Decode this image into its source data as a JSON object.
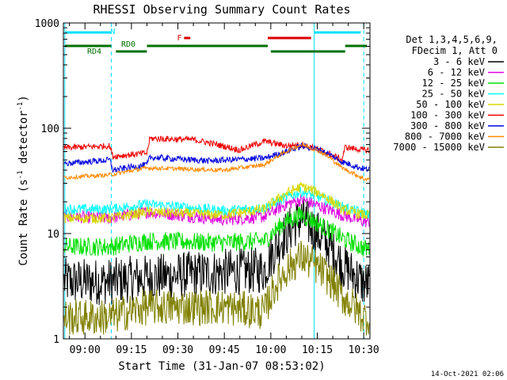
{
  "chart_data": {
    "type": "line",
    "title": "RHESSI Observing Summary Count Rates",
    "xlabel": "Start Time (31-Jan-07 08:53:02)",
    "ylabel_text": "Count Rate (s",
    "ylabel_sup1": "-1",
    "ylabel_mid": " detector",
    "ylabel_sup2": "-1",
    "ylabel_end": ")",
    "y_scale": "log",
    "ylim": [
      1,
      1000
    ],
    "xlim": [
      "08:53:02",
      "10:32:00"
    ],
    "x_ticks": [
      {
        "t": "09:00",
        "label": "09:00"
      },
      {
        "t": "09:15",
        "label": "09:15"
      },
      {
        "t": "09:30",
        "label": "09:30"
      },
      {
        "t": "09:45",
        "label": "09:45"
      },
      {
        "t": "10:00",
        "label": "10:00"
      },
      {
        "t": "10:15",
        "label": "10:15"
      },
      {
        "t": "10:30",
        "label": "10:30"
      }
    ],
    "y_ticks": [
      {
        "v": 1,
        "label": "1"
      },
      {
        "v": 10,
        "label": "10"
      },
      {
        "v": 100,
        "label": "100"
      },
      {
        "v": 1000,
        "label": "1000"
      }
    ],
    "legend_header": [
      "Det 1,3,4,5,6,9,",
      "FDecim 1, Att 0"
    ],
    "footer_date": "14-Oct-2021 02:06",
    "vertical_lines": [
      {
        "t": "08:53:30",
        "color": "#00e0ff",
        "style": "solid"
      },
      {
        "t": "09:08:30",
        "color": "#00e0ff",
        "style": "dashed"
      },
      {
        "t": "10:14:00",
        "color": "#00e0ff",
        "style": "solid"
      },
      {
        "t": "10:30:00",
        "color": "#00e0ff",
        "style": "dashed"
      }
    ],
    "flag_bars": [
      {
        "t0": "08:53:30",
        "t1": "09:08:30",
        "color": "#00e0ff",
        "row": "top"
      },
      {
        "t0": "10:14:00",
        "t1": "10:29:00",
        "color": "#00e0ff",
        "row": "top"
      },
      {
        "t0": "09:32:00",
        "t1": "09:34:00",
        "color": "#dd0000",
        "row": "mid"
      },
      {
        "t0": "09:59:00",
        "t1": "10:13:00",
        "color": "#dd0000",
        "row": "mid"
      },
      {
        "t0": "08:53:30",
        "t1": "09:08:30",
        "color": "#007000",
        "row": "low"
      },
      {
        "t0": "09:10:00",
        "t1": "09:20:00",
        "color": "#007000",
        "row": "low2"
      },
      {
        "t0": "09:20:00",
        "t1": "09:59:00",
        "color": "#007000",
        "row": "low"
      },
      {
        "t0": "10:00:00",
        "t1": "10:24:00",
        "color": "#007000",
        "row": "low2"
      },
      {
        "t0": "10:24:00",
        "t1": "10:31:00",
        "color": "#007000",
        "row": "low"
      }
    ],
    "flag_labels": [
      {
        "text": "N",
        "t": "09:09:00",
        "color": "#00e0ff",
        "row": "top"
      },
      {
        "text": "F",
        "t": "09:30:30",
        "color": "#dd0000",
        "row": "mid"
      },
      {
        "text": "RD0",
        "t": "09:14:00",
        "color": "#007000",
        "row": "low"
      },
      {
        "text": "RD4",
        "t": "09:03:00",
        "color": "#007000",
        "row": "low2"
      }
    ],
    "series": [
      {
        "name": "3 - 6 keV",
        "color": "#000000",
        "noise": 0.45,
        "key": [
          [
            "08:53",
            3.5
          ],
          [
            "09:08",
            3.5
          ],
          [
            "09:20",
            3.8
          ],
          [
            "09:45",
            4.3
          ],
          [
            "09:58",
            4.5
          ],
          [
            "10:05",
            10
          ],
          [
            "10:10",
            14
          ],
          [
            "10:15",
            10
          ],
          [
            "10:23",
            5
          ],
          [
            "10:30",
            3.3
          ]
        ]
      },
      {
        "name": "6 - 12 keV",
        "color": "#e000e0",
        "noise": 0.12,
        "key": [
          [
            "08:53",
            14.5
          ],
          [
            "09:08",
            14
          ],
          [
            "09:20",
            16
          ],
          [
            "09:45",
            13.5
          ],
          [
            "09:58",
            14.5
          ],
          [
            "10:05",
            19
          ],
          [
            "10:10",
            21
          ],
          [
            "10:16",
            18
          ],
          [
            "10:23",
            15
          ],
          [
            "10:30",
            13
          ]
        ]
      },
      {
        "name": "12 - 25 keV",
        "color": "#00e000",
        "noise": 0.18,
        "key": [
          [
            "08:53",
            7.5
          ],
          [
            "09:08",
            7.5
          ],
          [
            "09:20",
            8.5
          ],
          [
            "09:45",
            8.2
          ],
          [
            "09:58",
            8.5
          ],
          [
            "10:05",
            13
          ],
          [
            "10:10",
            15
          ],
          [
            "10:16",
            12
          ],
          [
            "10:23",
            9
          ],
          [
            "10:30",
            7.2
          ]
        ]
      },
      {
        "name": "25 - 50 keV",
        "color": "#00ffff",
        "noise": 0.1,
        "key": [
          [
            "08:53",
            17
          ],
          [
            "09:08",
            17
          ],
          [
            "09:20",
            19
          ],
          [
            "09:45",
            16.5
          ],
          [
            "09:58",
            17.5
          ],
          [
            "10:05",
            22
          ],
          [
            "10:10",
            25
          ],
          [
            "10:16",
            22
          ],
          [
            "10:23",
            18
          ],
          [
            "10:30",
            15.5
          ]
        ]
      },
      {
        "name": "50 - 100 keV",
        "color": "#d8d800",
        "noise": 0.1,
        "key": [
          [
            "08:53",
            14
          ],
          [
            "09:08",
            14
          ],
          [
            "09:20",
            16
          ],
          [
            "09:45",
            15
          ],
          [
            "09:58",
            17
          ],
          [
            "10:05",
            24
          ],
          [
            "10:10",
            28
          ],
          [
            "10:16",
            24
          ],
          [
            "10:23",
            17
          ],
          [
            "10:30",
            15
          ]
        ]
      },
      {
        "name": "100 - 300 keV",
        "color": "#ee0000",
        "noise": 0.06,
        "key": [
          [
            "08:53",
            65
          ],
          [
            "09:08",
            68
          ],
          [
            "09:09",
            54
          ],
          [
            "09:20",
            58
          ],
          [
            "09:21",
            80
          ],
          [
            "09:35",
            78
          ],
          [
            "09:50",
            62
          ],
          [
            "09:58",
            75
          ],
          [
            "10:05",
            68
          ],
          [
            "10:10",
            70
          ],
          [
            "10:16",
            62
          ],
          [
            "10:23",
            50
          ],
          [
            "10:24",
            66
          ],
          [
            "10:30",
            62
          ]
        ]
      },
      {
        "name": "300 - 800 keV",
        "color": "#0000dd",
        "noise": 0.06,
        "key": [
          [
            "08:53",
            46
          ],
          [
            "09:08",
            50
          ],
          [
            "09:09",
            40
          ],
          [
            "09:20",
            45
          ],
          [
            "09:21",
            53
          ],
          [
            "09:40",
            49
          ],
          [
            "09:58",
            52
          ],
          [
            "10:05",
            60
          ],
          [
            "10:10",
            68
          ],
          [
            "10:16",
            62
          ],
          [
            "10:23",
            48
          ],
          [
            "10:30",
            41
          ]
        ]
      },
      {
        "name": "800 - 7000 keV",
        "color": "#ff8800",
        "noise": 0.04,
        "key": [
          [
            "08:53",
            34
          ],
          [
            "09:08",
            36
          ],
          [
            "09:20",
            42
          ],
          [
            "09:45",
            40
          ],
          [
            "09:58",
            45
          ],
          [
            "10:05",
            60
          ],
          [
            "10:10",
            70
          ],
          [
            "10:16",
            60
          ],
          [
            "10:23",
            42
          ],
          [
            "10:30",
            33
          ]
        ]
      },
      {
        "name": "7000 - 15000 keV",
        "color": "#808000",
        "noise": 0.35,
        "key": [
          [
            "08:53",
            1.6
          ],
          [
            "09:08",
            1.6
          ],
          [
            "09:20",
            2.0
          ],
          [
            "09:45",
            2.0
          ],
          [
            "09:58",
            1.8
          ],
          [
            "10:05",
            4.5
          ],
          [
            "10:10",
            6
          ],
          [
            "10:16",
            4.5
          ],
          [
            "10:23",
            2.5
          ],
          [
            "10:30",
            1.6
          ]
        ]
      }
    ]
  }
}
